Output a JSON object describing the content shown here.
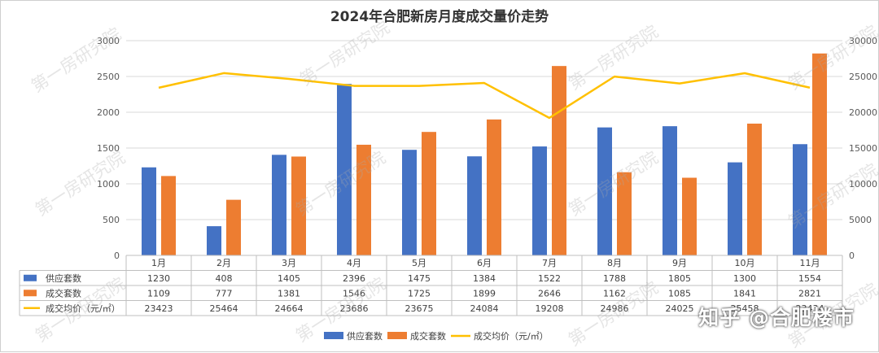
{
  "chart_data": {
    "type": "bar",
    "title": "2024年合肥新房月度成交量价走势",
    "categories": [
      "1月",
      "2月",
      "3月",
      "4月",
      "5月",
      "6月",
      "7月",
      "8月",
      "9月",
      "10月",
      "11月"
    ],
    "series": [
      {
        "name": "供应套数",
        "type": "bar",
        "axis": "left",
        "color": "#4472c4",
        "values": [
          1230,
          408,
          1405,
          2396,
          1475,
          1384,
          1522,
          1788,
          1805,
          1300,
          1554
        ]
      },
      {
        "name": "成交套数",
        "type": "bar",
        "axis": "left",
        "color": "#ed7d31",
        "values": [
          1109,
          777,
          1381,
          1546,
          1725,
          1899,
          2646,
          1162,
          1085,
          1841,
          2821
        ]
      },
      {
        "name": "成交均价（元/㎡）",
        "type": "line",
        "axis": "right",
        "color": "#ffc000",
        "values": [
          23423,
          25464,
          24664,
          23686,
          23675,
          24084,
          19208,
          24986,
          24025,
          25458,
          23434
        ]
      }
    ],
    "ylim_left": [
      0,
      3000
    ],
    "yticks_left": [
      "0",
      "500",
      "1000",
      "1500",
      "2000",
      "2500",
      "3000"
    ],
    "ylim_right": [
      0,
      30000
    ],
    "yticks_right": [
      "0",
      "5000",
      "10000",
      "15000",
      "20000",
      "25000",
      "30000"
    ],
    "grid": true,
    "legend": "bottom",
    "data_table": true
  },
  "watermark": "第一房研究院",
  "credit": "知乎 @合肥楼市"
}
